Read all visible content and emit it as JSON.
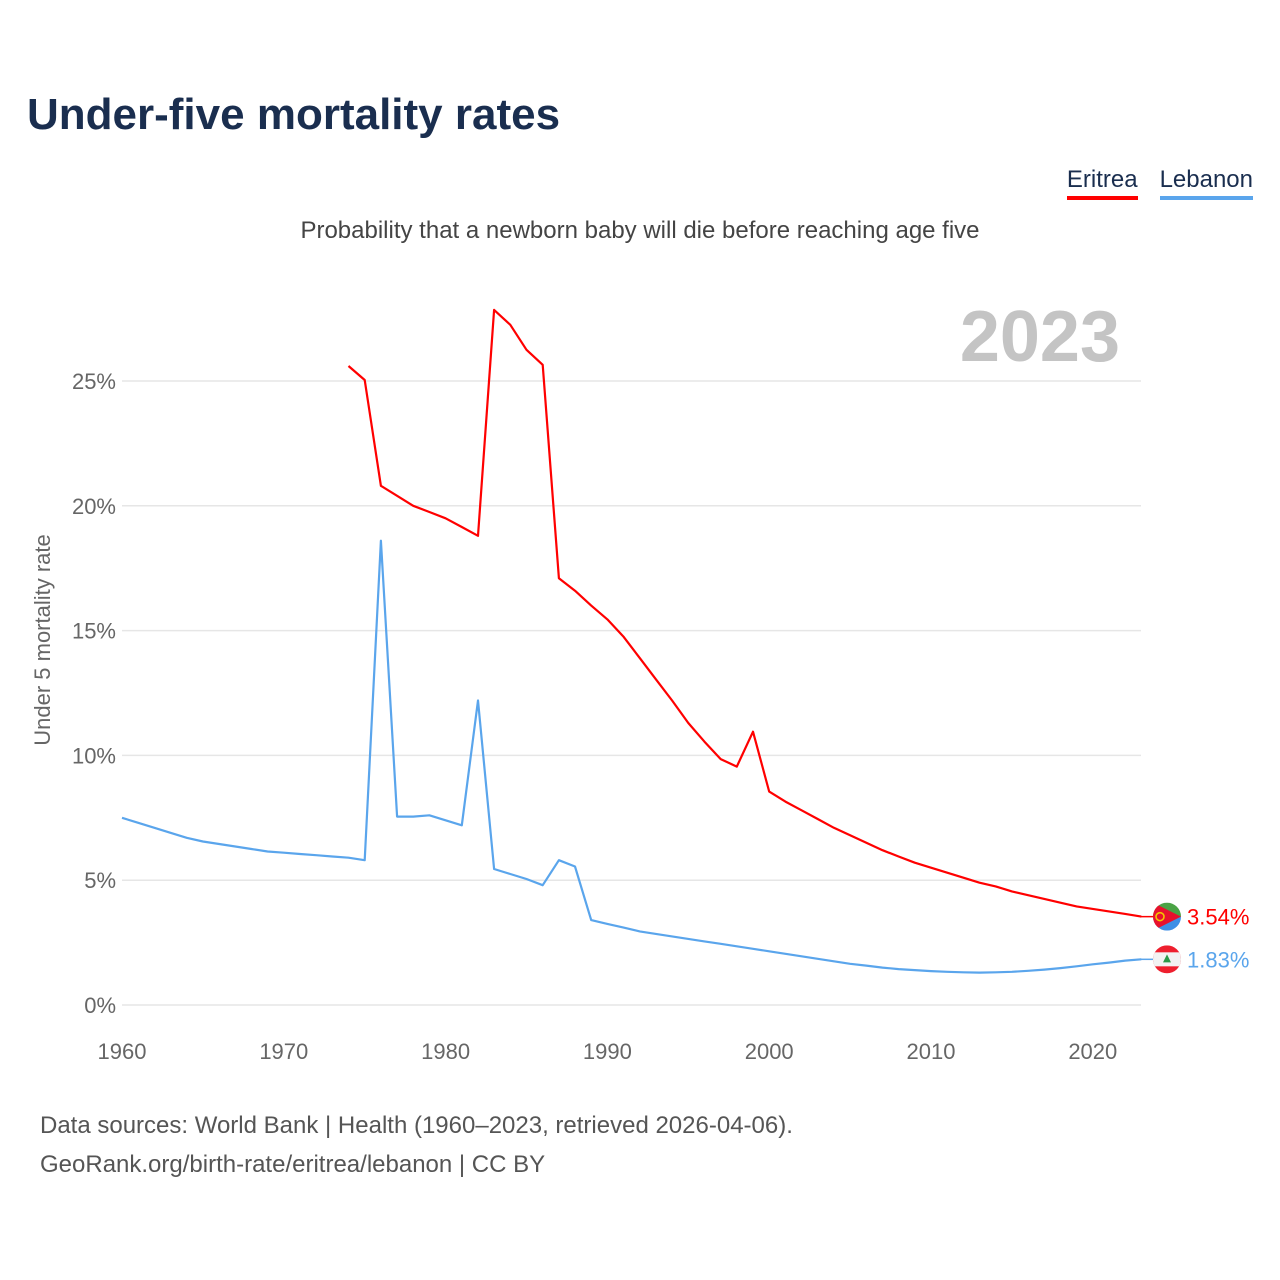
{
  "title": "Under-five mortality rates",
  "subtitle": "Probability that a newborn baby will die before reaching age five",
  "legend": [
    {
      "label": "Eritrea",
      "color": "#ff0000"
    },
    {
      "label": "Lebanon",
      "color": "#5aa5ec"
    }
  ],
  "source": {
    "line1": "Data sources: World Bank | Health (1960–2023, retrieved 2026-04-06).",
    "line2": "GeoRank.org/birth-rate/eritrea/lebanon | CC BY"
  },
  "chart_data": {
    "type": "line",
    "title": "Under-five mortality rates",
    "ylabel": "Under 5 mortality rate",
    "xlabel": "",
    "year_label": "2023",
    "xlim": [
      1960,
      2023
    ],
    "ylim": [
      0,
      28
    ],
    "x_ticks": [
      "1960",
      "1970",
      "1980",
      "1990",
      "2000",
      "2010",
      "2020"
    ],
    "y_ticks": [
      "0%",
      "5%",
      "10%",
      "15%",
      "20%",
      "25%"
    ],
    "series": [
      {
        "name": "Eritrea",
        "color": "#ff0000",
        "end_label": "3.54%",
        "start": 1974,
        "values": [
          25.6,
          25.04,
          20.8,
          20.4,
          20.0,
          19.75,
          19.5,
          19.15,
          18.8,
          27.85,
          27.25,
          26.25,
          25.65,
          17.1,
          16.6,
          16.0,
          15.45,
          14.75,
          13.9,
          13.05,
          12.2,
          11.3,
          10.55,
          9.85,
          9.55,
          10.95,
          8.55,
          8.15,
          7.8,
          7.45,
          7.1,
          6.8,
          6.5,
          6.2,
          5.95,
          5.7,
          5.5,
          5.3,
          5.1,
          4.9,
          4.75,
          4.55,
          4.4,
          4.25,
          4.1,
          3.95,
          3.85,
          3.75,
          3.65,
          3.54
        ]
      },
      {
        "name": "Lebanon",
        "color": "#5aa5ec",
        "end_label": "1.83%",
        "start": 1960,
        "values": [
          7.5,
          7.3,
          7.1,
          6.9,
          6.7,
          6.55,
          6.45,
          6.35,
          6.25,
          6.15,
          6.1,
          6.05,
          6.0,
          5.95,
          5.9,
          5.8,
          18.6,
          7.55,
          7.55,
          7.6,
          7.4,
          7.2,
          12.2,
          5.45,
          5.25,
          5.05,
          4.8,
          5.8,
          5.55,
          3.4,
          3.25,
          3.1,
          2.95,
          2.85,
          2.75,
          2.65,
          2.55,
          2.45,
          2.35,
          2.25,
          2.15,
          2.05,
          1.95,
          1.85,
          1.75,
          1.65,
          1.58,
          1.5,
          1.44,
          1.4,
          1.36,
          1.33,
          1.31,
          1.3,
          1.31,
          1.33,
          1.37,
          1.42,
          1.48,
          1.55,
          1.63,
          1.7,
          1.78,
          1.83
        ]
      }
    ]
  }
}
